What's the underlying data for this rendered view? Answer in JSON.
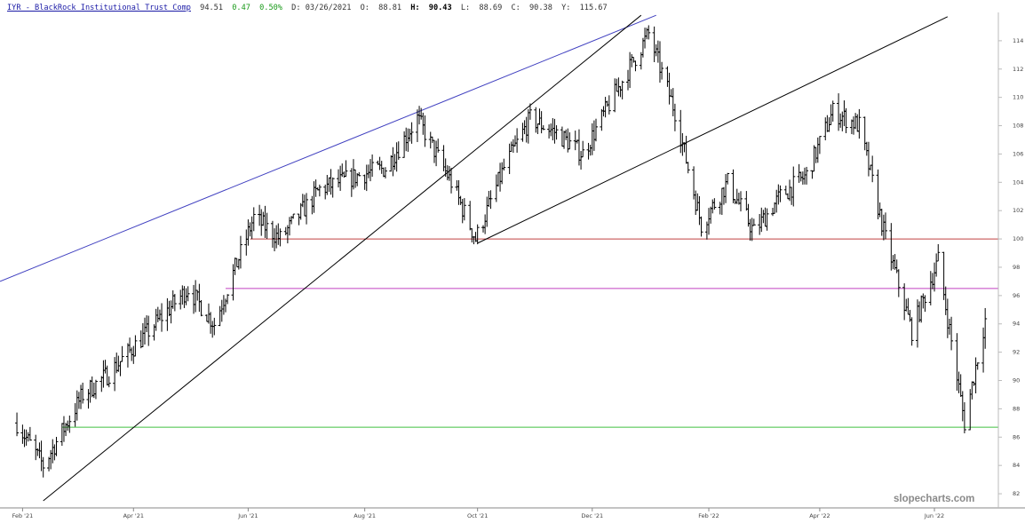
{
  "header": {
    "title": "IYR - BlackRock Institutional Trust Comp",
    "last": "94.51",
    "change": "0.47",
    "change_pct": "0.50%",
    "date_label": "D: 03/26/2021",
    "open_label": "O:",
    "open": "88.81",
    "high_label": "H:",
    "high": "90.43",
    "low_label": "L:",
    "low": "88.69",
    "close_label": "C:",
    "close": "90.38",
    "y_label": "Y:",
    "y_value": "115.67"
  },
  "watermark": "slopecharts.com",
  "colors": {
    "bars": "#000000",
    "upper_channel_line": "#4040c0",
    "trend_lines": "#000000",
    "level_100": "#c04040",
    "level_96_5": "#c040c0",
    "level_86_7": "#40c040",
    "title_link": "#1a1aa6",
    "change_positive": "#1a9a1a"
  },
  "chart_data": {
    "type": "ohlc",
    "title": "IYR - BlackRock Institutional Trust Comp",
    "x_axis": {
      "type": "date",
      "tick_labels": [
        "Feb '21",
        "Apr '21",
        "Jun '21",
        "Aug '21",
        "Oct '21",
        "Dec '21",
        "Feb '22",
        "Apr '22",
        "Jun '22"
      ],
      "range": [
        "2021-01-20",
        "2022-07-05"
      ]
    },
    "y_axis": {
      "position": "right",
      "ylim": [
        81,
        116
      ],
      "ticks": [
        82,
        84,
        86,
        88,
        90,
        92,
        94,
        96,
        98,
        100,
        102,
        104,
        106,
        108,
        110,
        112,
        114
      ]
    },
    "grid": false,
    "legend": "none",
    "close_path": [
      {
        "date": "2021-01-29",
        "close": 87.0
      },
      {
        "date": "2021-02-12",
        "close": 84.0
      },
      {
        "date": "2021-03-05",
        "close": 89.0
      },
      {
        "date": "2021-03-19",
        "close": 90.5
      },
      {
        "date": "2021-04-09",
        "close": 93.5
      },
      {
        "date": "2021-04-30",
        "close": 96.5
      },
      {
        "date": "2021-05-14",
        "close": 94.0
      },
      {
        "date": "2021-06-04",
        "close": 101.5
      },
      {
        "date": "2021-06-18",
        "close": 100.0
      },
      {
        "date": "2021-07-09",
        "close": 103.5
      },
      {
        "date": "2021-07-30",
        "close": 104.5
      },
      {
        "date": "2021-08-13",
        "close": 105.0
      },
      {
        "date": "2021-08-30",
        "close": 108.5
      },
      {
        "date": "2021-09-17",
        "close": 104.0
      },
      {
        "date": "2021-09-30",
        "close": 100.0
      },
      {
        "date": "2021-10-15",
        "close": 105.0
      },
      {
        "date": "2021-10-29",
        "close": 108.5
      },
      {
        "date": "2021-11-12",
        "close": 107.5
      },
      {
        "date": "2021-11-26",
        "close": 106.0
      },
      {
        "date": "2021-12-10",
        "close": 109.5
      },
      {
        "date": "2021-12-31",
        "close": 114.5
      },
      {
        "date": "2022-01-14",
        "close": 109.0
      },
      {
        "date": "2022-01-28",
        "close": 101.0
      },
      {
        "date": "2022-02-11",
        "close": 104.0
      },
      {
        "date": "2022-02-25",
        "close": 100.5
      },
      {
        "date": "2022-03-11",
        "close": 103.0
      },
      {
        "date": "2022-03-25",
        "close": 104.5
      },
      {
        "date": "2022-04-08",
        "close": 109.0
      },
      {
        "date": "2022-04-22",
        "close": 108.0
      },
      {
        "date": "2022-05-06",
        "close": 100.0
      },
      {
        "date": "2022-05-20",
        "close": 93.5
      },
      {
        "date": "2022-06-03",
        "close": 98.5
      },
      {
        "date": "2022-06-17",
        "close": 87.0
      },
      {
        "date": "2022-06-28",
        "close": 94.3
      }
    ],
    "trend_lines": [
      {
        "name": "upper-channel",
        "color": "#4040c0",
        "from": {
          "date": "2021-01-20",
          "value": 97.0
        },
        "to": {
          "date": "2022-01-04",
          "value": 115.8
        }
      },
      {
        "name": "steep-support",
        "color": "#000000",
        "from": {
          "date": "2021-02-12",
          "value": 81.5
        },
        "to": {
          "date": "2021-12-27",
          "value": 115.8
        }
      },
      {
        "name": "rising-support",
        "color": "#000000",
        "from": {
          "date": "2021-10-01",
          "value": 99.7
        },
        "to": {
          "date": "2022-06-08",
          "value": 115.7
        }
      }
    ],
    "horizontal_levels": [
      {
        "value": 100.0,
        "color": "#c04040",
        "from": "2021-06-02",
        "to": "2022-07-05"
      },
      {
        "value": 96.5,
        "color": "#c040c0",
        "from": "2021-05-20",
        "to": "2022-07-05"
      },
      {
        "value": 86.7,
        "color": "#40c040",
        "from": "2021-02-22",
        "to": "2022-07-05"
      }
    ]
  }
}
